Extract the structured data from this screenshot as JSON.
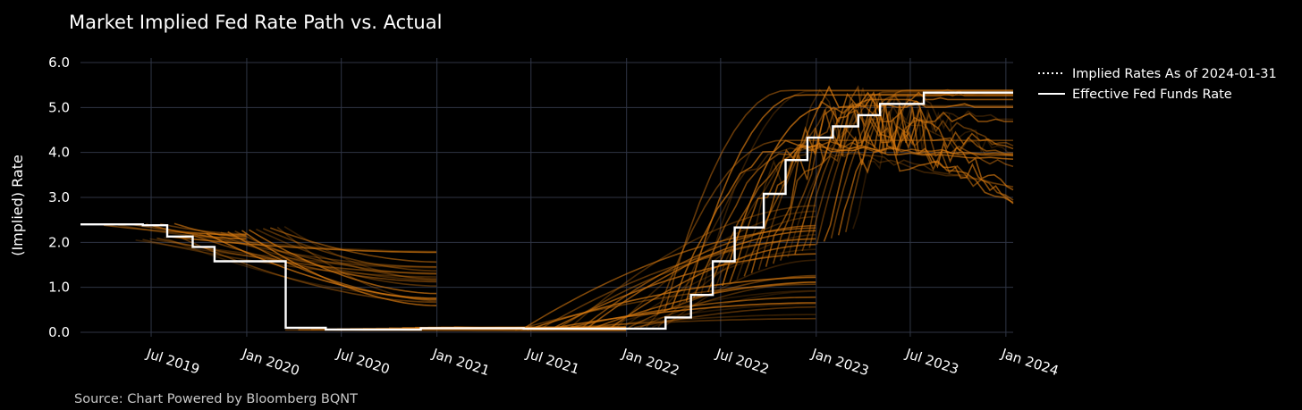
{
  "chart_data": {
    "type": "line",
    "title": "Market Implied Fed Rate Path vs. Actual",
    "ylabel": "(Implied) Rate",
    "xlabel": "",
    "source": "Source: Chart Powered by Bloomberg BQNT",
    "ylim": [
      -0.1,
      6.1
    ],
    "xlim": [
      "2019-02-15",
      "2024-01-15"
    ],
    "y_ticks": [
      "0.0",
      "1.0",
      "2.0",
      "3.0",
      "4.0",
      "5.0",
      "6.0"
    ],
    "x_ticks": [
      {
        "date": "2019-07-01",
        "label": "Jul 2019"
      },
      {
        "date": "2020-01-01",
        "label": "Jan 2020"
      },
      {
        "date": "2020-07-01",
        "label": "Jul 2020"
      },
      {
        "date": "2021-01-01",
        "label": "Jan 2021"
      },
      {
        "date": "2021-07-01",
        "label": "Jul 2021"
      },
      {
        "date": "2022-01-01",
        "label": "Jan 2022"
      },
      {
        "date": "2022-07-01",
        "label": "Jul 2022"
      },
      {
        "date": "2023-01-01",
        "label": "Jan 2023"
      },
      {
        "date": "2023-07-01",
        "label": "Jul 2023"
      },
      {
        "date": "2024-01-01",
        "label": "Jan 2024"
      }
    ],
    "grid": true,
    "legend_position": "top-right",
    "colors": {
      "implied": "#d97a10",
      "actual": "#ffffff",
      "grid": "#2f3545",
      "background": "#000000"
    },
    "series": [
      {
        "name": "Effective Fed Funds Rate",
        "style": "solid-step",
        "x": [
          "2019-02-15",
          "2019-06-15",
          "2019-08-01",
          "2019-09-19",
          "2019-10-31",
          "2020-03-04",
          "2020-03-16",
          "2020-06-01",
          "2020-12-01",
          "2021-06-17",
          "2022-03-17",
          "2022-05-05",
          "2022-06-16",
          "2022-07-28",
          "2022-09-22",
          "2022-11-03",
          "2022-12-15",
          "2023-02-02",
          "2023-03-23",
          "2023-05-04",
          "2023-07-27",
          "2024-01-15"
        ],
        "y": [
          2.4,
          2.38,
          2.13,
          1.9,
          1.58,
          1.58,
          0.1,
          0.06,
          0.09,
          0.08,
          0.33,
          0.83,
          1.58,
          2.33,
          3.08,
          3.83,
          4.33,
          4.58,
          4.83,
          5.08,
          5.33,
          5.33
        ]
      },
      {
        "name": "Implied Rates As of 2024-01-31",
        "style": "dotted",
        "x": [],
        "y": []
      }
    ],
    "implied_path_groups": [
      {
        "start": "2019-04-01",
        "end": "2019-12-31",
        "start_rate": [
          2.38,
          2.42
        ],
        "end_rate": [
          2.05,
          2.26
        ],
        "count": 6
      },
      {
        "start": "2019-06-01",
        "end": "2020-12-31",
        "start_rate": [
          2.05,
          2.35
        ],
        "end_rate": [
          0.4,
          1.85
        ],
        "count": 22
      },
      {
        "start": "2020-03-15",
        "end": "2021-12-31",
        "start_rate": [
          0.05,
          0.12
        ],
        "end_rate": [
          0.02,
          0.12
        ],
        "count": 14
      },
      {
        "start": "2021-06-01",
        "end": "2022-12-31",
        "start_rate": [
          0.05,
          0.12
        ],
        "end_rate": [
          0.25,
          3.05
        ],
        "count": 26
      },
      {
        "start": "2022-03-01",
        "end": "2024-01-15",
        "start_rate": [
          0.4,
          2.3
        ],
        "end_rate": [
          2.8,
          5.45
        ],
        "count": 28
      }
    ]
  },
  "legend": {
    "implied_label": "Implied Rates As of 2024-01-31",
    "actual_label": "Effective Fed Funds Rate"
  }
}
